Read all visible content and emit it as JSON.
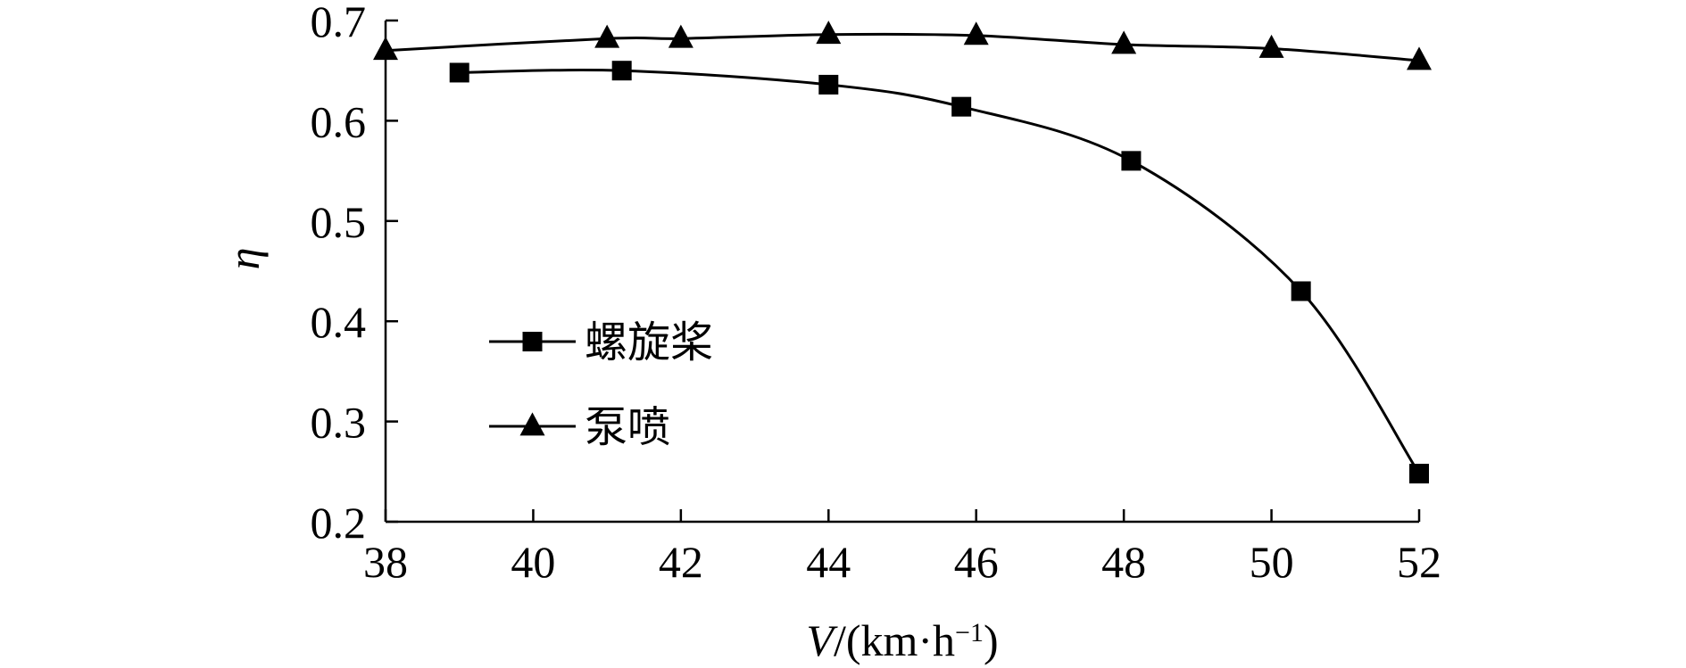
{
  "chart_data": {
    "type": "line",
    "title": "",
    "xlabel": {
      "var": "V",
      "rest": "/(km·h",
      "sup": "−1",
      "close": ")"
    },
    "ylabel": "η",
    "xlim": [
      38,
      52
    ],
    "ylim": [
      0.2,
      0.7
    ],
    "xticks": [
      38,
      40,
      42,
      44,
      46,
      48,
      50,
      52
    ],
    "xtick_labels": [
      "38",
      "40",
      "42",
      "44",
      "46",
      "48",
      "50",
      "52"
    ],
    "yticks": [
      0.2,
      0.3,
      0.4,
      0.5,
      0.6,
      0.7
    ],
    "ytick_labels": [
      "0.2",
      "0.3",
      "0.4",
      "0.5",
      "0.6",
      "0.7"
    ],
    "grid": false,
    "legend_position": "left-center",
    "series": [
      {
        "name": "螺旋桨",
        "marker": "square",
        "x": [
          39,
          41.2,
          44,
          45.8,
          48.1,
          50.4,
          52
        ],
        "y": [
          0.648,
          0.65,
          0.636,
          0.614,
          0.56,
          0.43,
          0.248
        ]
      },
      {
        "name": "泵喷",
        "marker": "triangle",
        "x": [
          38,
          41,
          42,
          44,
          46,
          48,
          50,
          52
        ],
        "y": [
          0.67,
          0.682,
          0.682,
          0.686,
          0.685,
          0.676,
          0.672,
          0.66
        ]
      }
    ]
  }
}
